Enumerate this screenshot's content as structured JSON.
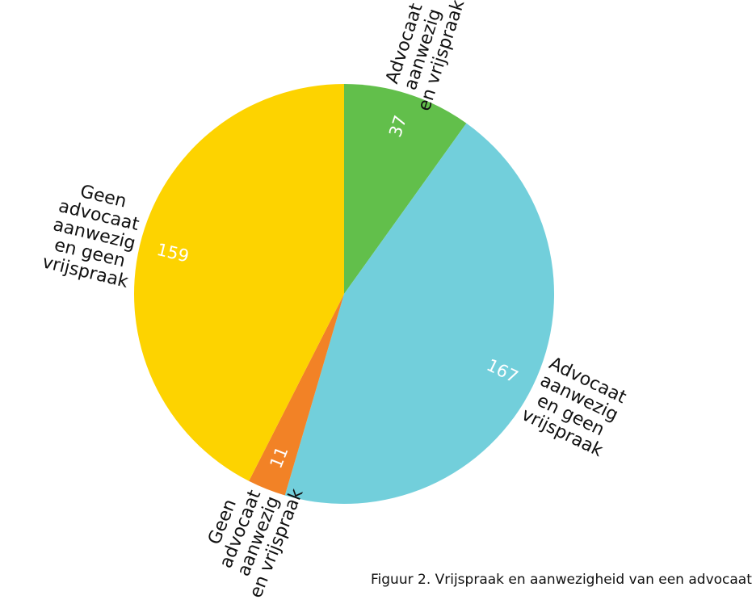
{
  "chart_data": {
    "type": "pie",
    "slices": [
      {
        "label": "Advocaat aanwezig en vrijspraak",
        "value": 37,
        "color": "#62bf4b",
        "label_lines": [
          "Advocaat",
          "aanwezig",
          "en vrijspraak"
        ]
      },
      {
        "label": "Advocaat aanwezig en geen vrijspraak",
        "value": 167,
        "color": "#72cfdb",
        "label_lines": [
          "Advocaat",
          "aanwezig",
          "en geen",
          "vrijspraak"
        ]
      },
      {
        "label": "Geen advocaat aanwezig en vrijspraak",
        "value": 11,
        "color": "#f28226",
        "label_lines": [
          "Geen",
          "advocaat",
          "aanwezig",
          "en vrijspraak"
        ]
      },
      {
        "label": "Geen advocaat aanwezig en geen vrijspraak",
        "value": 159,
        "color": "#fdd300",
        "label_lines": [
          "Geen",
          "advocaat",
          "aanwezig",
          "en geen",
          "vrijspraak"
        ]
      }
    ],
    "start": "top",
    "direction": "clockwise"
  },
  "caption": "Figuur 2. Vrijspraak en aanwezigheid van een advocaat"
}
